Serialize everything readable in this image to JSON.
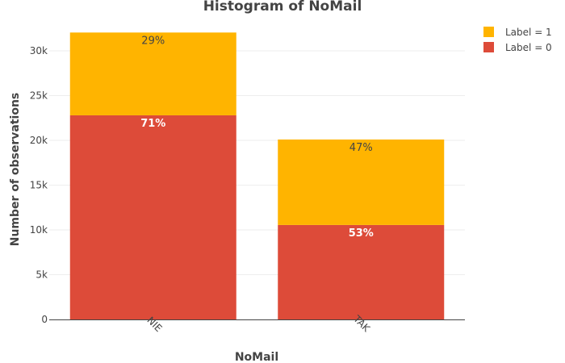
{
  "chart_data": {
    "type": "bar",
    "stacked": true,
    "title": "Histogram of NoMail",
    "xlabel": "NoMail",
    "ylabel": "Number of observations",
    "categories": [
      "NIE",
      "TAK"
    ],
    "series": [
      {
        "name": "Label = 0",
        "values": [
          22800,
          10550
        ],
        "labels": [
          "71%",
          "53%"
        ],
        "color": "#dd4b39",
        "label_color": "#ffffff"
      },
      {
        "name": "Label = 1",
        "values": [
          9250,
          9550
        ],
        "labels": [
          "29%",
          "47%"
        ],
        "color": "#ffb400",
        "label_color": "#444444"
      }
    ],
    "yticks": [
      {
        "value": 0,
        "label": "0"
      },
      {
        "value": 5000,
        "label": "5k"
      },
      {
        "value": 10000,
        "label": "10k"
      },
      {
        "value": 15000,
        "label": "15k"
      },
      {
        "value": 20000,
        "label": "20k"
      },
      {
        "value": 25000,
        "label": "25k"
      },
      {
        "value": 30000,
        "label": "30k"
      }
    ],
    "ylim": [
      0,
      33700
    ],
    "legend": {
      "placement": "top-right",
      "order": [
        "Label = 1",
        "Label = 0"
      ]
    },
    "grid": true
  }
}
